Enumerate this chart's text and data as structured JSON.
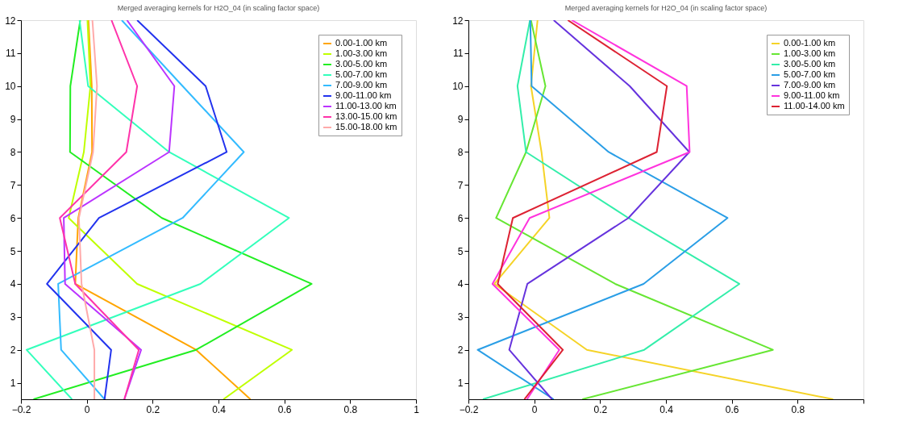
{
  "chart_data": [
    {
      "type": "line",
      "title": "Merged averaging kernels for H2O_04 (in scaling factor space)",
      "xlim": [
        -0.2,
        1
      ],
      "xticks": [
        -0.2,
        0,
        0.2,
        0.4,
        0.6,
        0.8,
        1
      ],
      "ylim": [
        0.5,
        12
      ],
      "yticks": [
        1,
        2,
        3,
        4,
        5,
        6,
        7,
        8,
        9,
        10,
        11,
        12
      ],
      "grid": false,
      "legend": "top right",
      "marker": "none",
      "line_style": "solid",
      "series": [
        {
          "name": "0.00-1.00 km",
          "color": "#ffa500",
          "x": [
            0.497,
            0.332,
            -0.035,
            -0.026,
            0.016,
            0.015,
            0.005
          ],
          "values": [
            0.5,
            2,
            4,
            6,
            8,
            10,
            12
          ]
        },
        {
          "name": "1.00-3.00 km",
          "color": "#bfff00",
          "x": [
            0.415,
            0.623,
            0.153,
            -0.055,
            -0.009,
            0.011,
            0.002
          ],
          "values": [
            0.5,
            2,
            4,
            6,
            8,
            10,
            12
          ]
        },
        {
          "name": "3.00-5.00 km",
          "color": "#22ee22",
          "x": [
            -0.162,
            0.332,
            0.683,
            0.228,
            -0.051,
            -0.05,
            -0.02
          ],
          "values": [
            0.5,
            2,
            4,
            6,
            8,
            10,
            12
          ]
        },
        {
          "name": "5.00-7.00 km",
          "color": "#33ffbb",
          "x": [
            -0.045,
            -0.183,
            0.345,
            0.614,
            0.25,
            0.004,
            -0.022
          ],
          "values": [
            0.5,
            2,
            4,
            6,
            8,
            10,
            12
          ]
        },
        {
          "name": "7.00-9.00 km",
          "color": "#33bbff",
          "x": [
            0.054,
            -0.078,
            -0.087,
            0.291,
            0.477,
            0.291,
            0.106
          ],
          "values": [
            0.5,
            2,
            4,
            6,
            8,
            10,
            12
          ]
        },
        {
          "name": "9.00-11.00 km",
          "color": "#2233ee",
          "x": [
            0.054,
            0.074,
            -0.121,
            0.037,
            0.425,
            0.361,
            0.153
          ],
          "values": [
            0.5,
            2,
            4,
            6,
            8,
            10,
            12
          ]
        },
        {
          "name": "11.00-13.00 km",
          "color": "#bb33ff",
          "x": [
            0.114,
            0.165,
            -0.066,
            -0.07,
            0.25,
            0.266,
            0.122
          ],
          "values": [
            0.5,
            2,
            4,
            6,
            8,
            10,
            12
          ]
        },
        {
          "name": "13.00-15.00 km",
          "color": "#ff33aa",
          "x": [
            0.114,
            0.158,
            -0.035,
            -0.082,
            0.12,
            0.153,
            0.075
          ],
          "values": [
            0.5,
            2,
            4,
            6,
            8,
            10,
            12
          ]
        },
        {
          "name": "15.00-18.00 km",
          "color": "#ffaaaa",
          "x": [
            0.023,
            0.023,
            -0.016,
            -0.024,
            0.019,
            0.031,
            0.017
          ],
          "values": [
            0.5,
            2,
            4,
            6,
            8,
            10,
            12
          ]
        }
      ]
    },
    {
      "type": "line",
      "title": "Merged averaging kernels for H2O_04 (in scaling factor space)",
      "xlim": [
        -0.2,
        1
      ],
      "xticks": [
        -0.2,
        0,
        0.2,
        0.4,
        0.6,
        0.8,
        {
          "value": 1,
          "label": null
        }
      ],
      "ylim": [
        0.5,
        12
      ],
      "yticks": [
        1,
        2,
        3,
        4,
        5,
        6,
        7,
        8,
        9,
        10,
        11,
        12
      ],
      "grid": false,
      "legend": "top right",
      "marker": "none",
      "line_style": "solid",
      "series": [
        {
          "name": "0.00-1.00 km",
          "color": "#f5d327",
          "x": [
            0.908,
            0.16,
            -0.121,
            0.046,
            0.022,
            -0.01,
            0.01
          ],
          "values": [
            0.5,
            2,
            4,
            6,
            8,
            10,
            12
          ]
        },
        {
          "name": "1.00-3.00 km",
          "color": "#66e633",
          "x": [
            0.146,
            0.725,
            0.246,
            -0.116,
            -0.025,
            0.034,
            -0.01
          ],
          "values": [
            0.5,
            2,
            4,
            6,
            8,
            10,
            12
          ]
        },
        {
          "name": "3.00-5.00 km",
          "color": "#33eeaa",
          "x": [
            -0.156,
            0.334,
            0.623,
            0.286,
            -0.025,
            -0.051,
            -0.013
          ],
          "values": [
            0.5,
            2,
            4,
            6,
            8,
            10,
            12
          ]
        },
        {
          "name": "5.00-7.00 km",
          "color": "#2a9ee6",
          "x": [
            0.059,
            -0.172,
            0.332,
            0.587,
            0.226,
            -0.008,
            -0.012
          ],
          "values": [
            0.5,
            2,
            4,
            6,
            8,
            10,
            12
          ]
        },
        {
          "name": "7.00-9.00 km",
          "color": "#6633dd",
          "x": [
            0.054,
            -0.076,
            -0.021,
            0.286,
            0.471,
            0.29,
            0.059
          ],
          "values": [
            0.5,
            2,
            4,
            6,
            8,
            10,
            12
          ]
        },
        {
          "name": "9.00-11.00 km",
          "color": "#ff33dd",
          "x": [
            -0.022,
            0.076,
            -0.127,
            -0.014,
            0.472,
            0.463,
            0.114
          ],
          "values": [
            0.5,
            2,
            4,
            6,
            8,
            10,
            12
          ]
        },
        {
          "name": "11.00-14.00 km",
          "color": "#dd2233",
          "x": [
            -0.03,
            0.087,
            -0.111,
            -0.065,
            0.372,
            0.403,
            0.102
          ],
          "values": [
            0.5,
            2,
            4,
            6,
            8,
            10,
            12
          ]
        }
      ]
    }
  ]
}
